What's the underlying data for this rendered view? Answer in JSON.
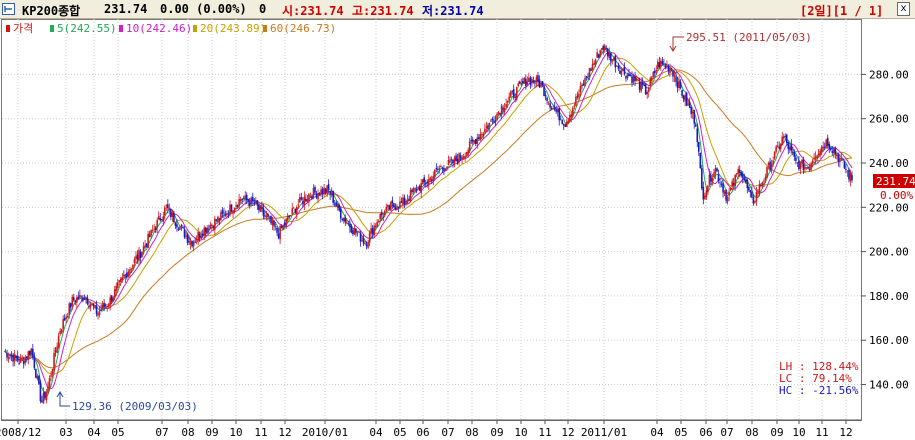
{
  "header": {
    "symbol": "KP200종합",
    "price": "231.74",
    "change": "0.00 (0.00%)",
    "volume": "0",
    "open": "시:231.74",
    "high": "고:231.74",
    "low": "저:231.74",
    "period_label": "[2일][1 / 1]"
  },
  "legend": {
    "price_label": "가격",
    "ma5": "5(242.55)",
    "ma10": "10(242.46)",
    "ma20": "20(243.89)",
    "ma60": "60(246.73)"
  },
  "stats": {
    "lh": "LH : 128.44%",
    "lc": "LC : 79.14%",
    "hc": "HC : -21.56%"
  },
  "colors": {
    "up": "#cc1a1a",
    "down": "#1a1ac0",
    "ma5": "#22aa55",
    "ma10": "#cc22cc",
    "ma20": "#c8a000",
    "ma60": "#c87a20",
    "header_red": "#cc0000",
    "header_blue": "#0000aa"
  },
  "chart_data": {
    "type": "candlestick",
    "x_ticks": [
      "2008/12",
      "03",
      "04",
      "05",
      "07",
      "08",
      "09",
      "10",
      "11",
      "12",
      "2010/01",
      "04",
      "05",
      "06",
      "07",
      "08",
      "09",
      "10",
      "11",
      "12",
      "2011/01",
      "04",
      "05",
      "06",
      "07",
      "08",
      "09",
      "10",
      "11",
      "12"
    ],
    "y_ticks": [
      140,
      160,
      180,
      200,
      220,
      240,
      260,
      280
    ],
    "ylim": [
      124,
      305
    ],
    "current_price": "231.74",
    "current_change": "0.00%",
    "max_annotation": {
      "label": "295.51 (2011/05/03)",
      "value": 295.51,
      "date": "2011/05/03"
    },
    "min_annotation": {
      "label": "129.36 (2009/03/03)",
      "value": 129.36,
      "date": "2009/03/03"
    },
    "close_path": [
      [
        0,
        155
      ],
      [
        1.4,
        150
      ],
      [
        2.2,
        156
      ],
      [
        3,
        132
      ],
      [
        3.5,
        138
      ],
      [
        4.5,
        165
      ],
      [
        5.5,
        178
      ],
      [
        6.5,
        180
      ],
      [
        7.5,
        172
      ],
      [
        8.5,
        178
      ],
      [
        10,
        192
      ],
      [
        11,
        200
      ],
      [
        12,
        210
      ],
      [
        13,
        220
      ],
      [
        14,
        212
      ],
      [
        15,
        204
      ],
      [
        16,
        210
      ],
      [
        17.5,
        216
      ],
      [
        19,
        224
      ],
      [
        20,
        222
      ],
      [
        21.5,
        212
      ],
      [
        22,
        208
      ],
      [
        23.5,
        221
      ],
      [
        24.5,
        226
      ],
      [
        26,
        228
      ],
      [
        27,
        217
      ],
      [
        28,
        210
      ],
      [
        29,
        204
      ],
      [
        30,
        215
      ],
      [
        31,
        220
      ],
      [
        32,
        222
      ],
      [
        33,
        228
      ],
      [
        34,
        232
      ],
      [
        35,
        238
      ],
      [
        36,
        240
      ],
      [
        37,
        245
      ],
      [
        38,
        252
      ],
      [
        39,
        258
      ],
      [
        40,
        266
      ],
      [
        41,
        272
      ],
      [
        42,
        278
      ],
      [
        43,
        276
      ],
      [
        44,
        265
      ],
      [
        45,
        258
      ],
      [
        46,
        270
      ],
      [
        47,
        282
      ],
      [
        48,
        293
      ],
      [
        48.5,
        289
      ],
      [
        49.5,
        282
      ],
      [
        50.5,
        278
      ],
      [
        51.5,
        272
      ],
      [
        52.5,
        285
      ],
      [
        53.5,
        283
      ],
      [
        54.5,
        270
      ],
      [
        55.5,
        258
      ],
      [
        56,
        225
      ],
      [
        57,
        238
      ],
      [
        58,
        224
      ],
      [
        59,
        238
      ],
      [
        60,
        222
      ],
      [
        61.5,
        240
      ],
      [
        62.5,
        252
      ],
      [
        63.5,
        240
      ],
      [
        64.5,
        238
      ],
      [
        65,
        244
      ],
      [
        66,
        250
      ],
      [
        67,
        242
      ],
      [
        68,
        232
      ]
    ],
    "series": [
      {
        "name": "5",
        "last": 242.55
      },
      {
        "name": "10",
        "last": 242.46
      },
      {
        "name": "20",
        "last": 243.89
      },
      {
        "name": "60",
        "last": 246.73
      }
    ]
  }
}
